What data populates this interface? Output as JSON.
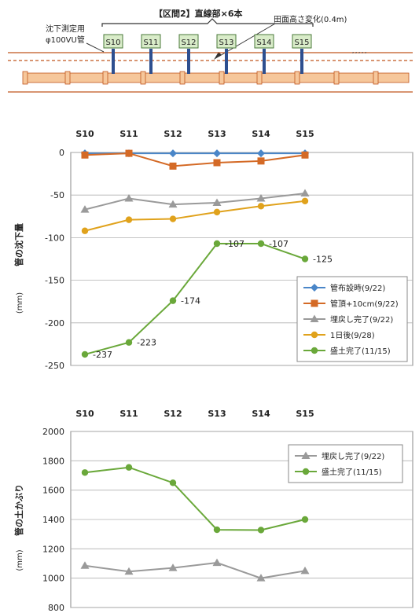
{
  "diagram": {
    "section_title": "【区間2】直線部×6本",
    "pipe_label_line1": "沈下測定用",
    "pipe_label_line2": "φ100VU管",
    "height_change_label": "田面高さ変化(0.4m)",
    "stations": [
      "S10",
      "S11",
      "S12",
      "S13",
      "S14",
      "S15"
    ],
    "colors": {
      "pipe": "#f6c79b",
      "pipe_stroke": "#c0561e",
      "post": "#2e4f8f",
      "tag_fill": "#d9ecc9",
      "tag_stroke": "#4a7a3a",
      "ground": "#c0561e"
    }
  },
  "chart_data": [
    {
      "type": "line",
      "categories": [
        "S10",
        "S11",
        "S12",
        "S13",
        "S14",
        "S15"
      ],
      "ylabel_main": "管の沈下量",
      "ylabel_unit": "(mm)",
      "ylim": [
        -250,
        0
      ],
      "yticks": [
        0,
        -50,
        -100,
        -150,
        -200,
        -250
      ],
      "grid": true,
      "legend_position": "right-center",
      "series": [
        {
          "name": "管布設時(9/22)",
          "values": [
            -1,
            -1,
            -1,
            -1,
            -1,
            -1
          ],
          "color": "#4a86c8",
          "marker": "diamond"
        },
        {
          "name": "管頂+10cm(9/22)",
          "values": [
            -3,
            -1,
            -16,
            -12,
            -10,
            -3
          ],
          "color": "#d46a26",
          "marker": "square"
        },
        {
          "name": "埋戻し完了(9/22)",
          "values": [
            -67,
            -54,
            -61,
            -59,
            -54,
            -48
          ],
          "color": "#9a9a9a",
          "marker": "triangle"
        },
        {
          "name": "1日後(9/28)",
          "values": [
            -92,
            -79,
            -78,
            -70,
            -63,
            -57
          ],
          "color": "#e0a21c",
          "marker": "circle"
        },
        {
          "name": "盛土完了(11/15)",
          "values": [
            -237,
            -223,
            -174,
            -107,
            -107,
            -125
          ],
          "color": "#6aa83a",
          "marker": "circle"
        }
      ],
      "data_labels": [
        {
          "text": "-237",
          "x": "S10",
          "y": -237,
          "color": "#d9381e"
        },
        {
          "text": "-223",
          "x": "S11",
          "y": -223,
          "color": "#222222"
        },
        {
          "text": "-174",
          "x": "S12",
          "y": -174,
          "color": "#222222"
        },
        {
          "text": "-107",
          "x": "S13",
          "y": -107,
          "color": "#222222"
        },
        {
          "text": "-107",
          "x": "S14",
          "y": -107,
          "color": "#222222"
        },
        {
          "text": "-125",
          "x": "S15",
          "y": -125,
          "color": "#222222"
        }
      ]
    },
    {
      "type": "line",
      "categories": [
        "S10",
        "S11",
        "S12",
        "S13",
        "S14",
        "S15"
      ],
      "ylabel_main": "管の土かぶり",
      "ylabel_unit": "(mm)",
      "ylim": [
        800,
        2000
      ],
      "yticks": [
        2000,
        1800,
        1600,
        1400,
        1200,
        1000,
        800
      ],
      "grid": true,
      "legend_position": "top-right",
      "series": [
        {
          "name": "埋戻し完了(9/22)",
          "values": [
            1085,
            1045,
            1070,
            1105,
            1000,
            1050
          ],
          "color": "#9a9a9a",
          "marker": "triangle"
        },
        {
          "name": "盛土完了(11/15)",
          "values": [
            1720,
            1755,
            1650,
            1330,
            1328,
            1400
          ],
          "color": "#6aa83a",
          "marker": "circle"
        }
      ]
    }
  ]
}
